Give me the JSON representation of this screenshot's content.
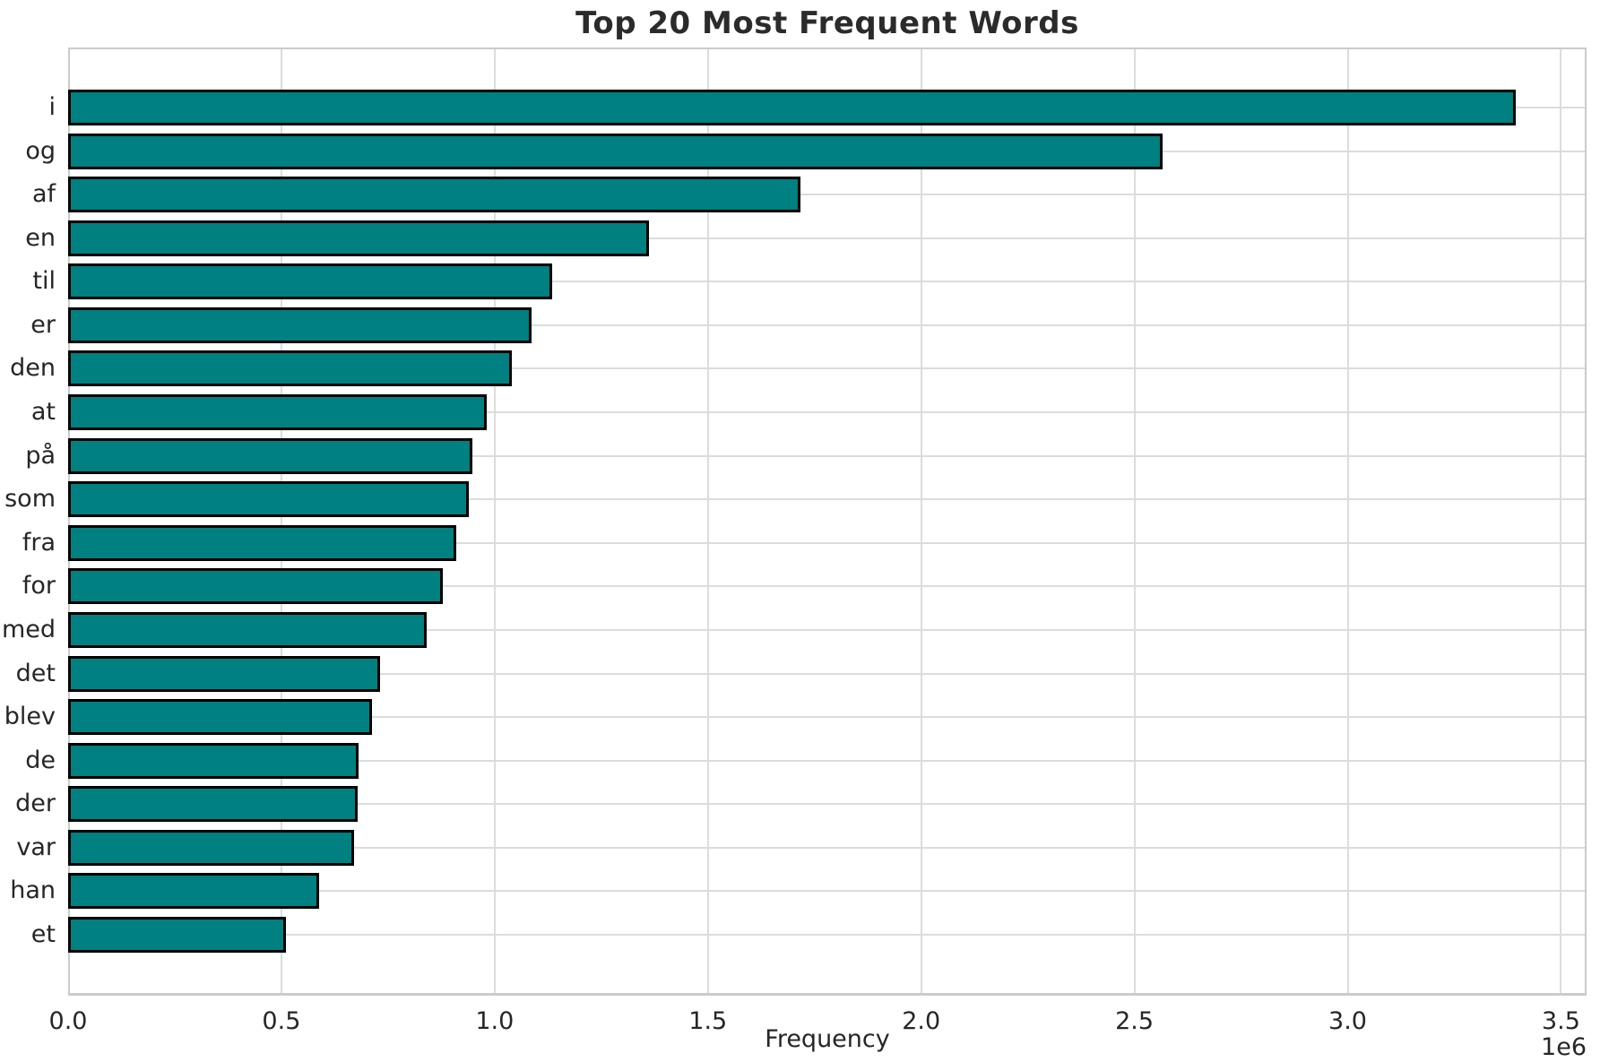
{
  "chart_data": {
    "type": "bar",
    "orientation": "horizontal",
    "title": "Top 20 Most Frequent Words",
    "xlabel": "Frequency",
    "ylabel": "",
    "x_tick_multiplier": "1e6",
    "x_tick_labels": [
      "0.0",
      "0.5",
      "1.0",
      "1.5",
      "2.0",
      "2.5",
      "3.0",
      "3.5"
    ],
    "x_tick_values": [
      0,
      500000,
      1000000,
      1500000,
      2000000,
      2500000,
      3000000,
      3500000
    ],
    "xlim": [
      0,
      3560000
    ],
    "grid": true,
    "legend_position": "none",
    "bar_color": "#008080",
    "bar_edge_color": "#000000",
    "grid_color": "#dcdcdc",
    "categories": [
      "i",
      "og",
      "af",
      "en",
      "til",
      "er",
      "den",
      "at",
      "på",
      "som",
      "fra",
      "for",
      "med",
      "det",
      "blev",
      "de",
      "der",
      "var",
      "han",
      "et"
    ],
    "values": [
      3394000,
      2566000,
      1716000,
      1362000,
      1134000,
      1087000,
      1041000,
      982000,
      948000,
      940000,
      911000,
      879000,
      841000,
      731000,
      712000,
      681000,
      678000,
      671000,
      589000,
      510000
    ]
  }
}
